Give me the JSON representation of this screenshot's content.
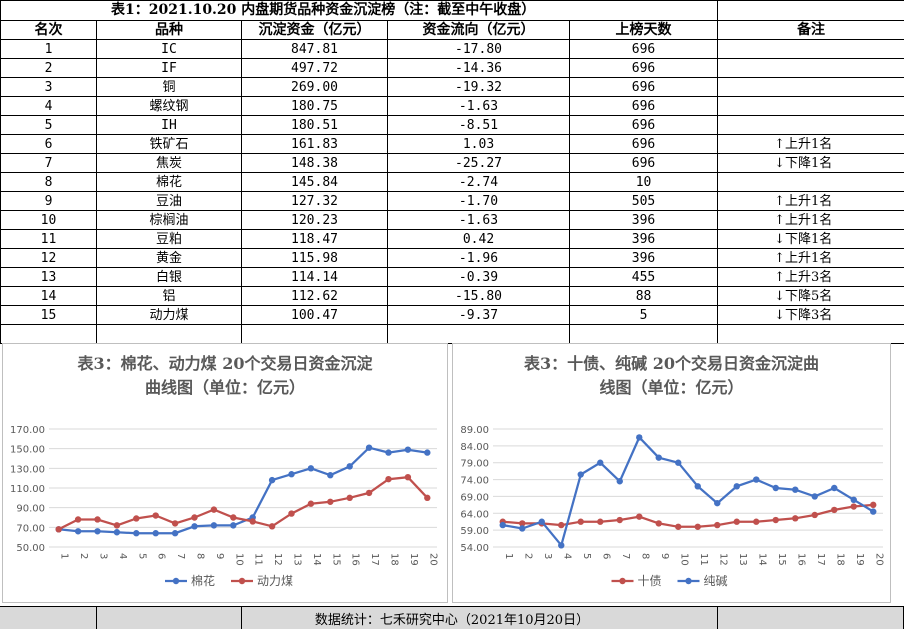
{
  "table": {
    "title": "表1：2021.10.20 内盘期货品种资金沉淀榜（注：截至中午收盘）",
    "headers": [
      "名次",
      "品种",
      "沉淀资金（亿元）",
      "资金流向（亿元）",
      "上榜天数",
      "备注"
    ],
    "rows": [
      {
        "rank": "1",
        "name": "IC",
        "fund": "847.81",
        "flow": "-17.80",
        "days": "696",
        "note": ""
      },
      {
        "rank": "2",
        "name": "IF",
        "fund": "497.72",
        "flow": "-14.36",
        "days": "696",
        "note": ""
      },
      {
        "rank": "3",
        "name": "铜",
        "fund": "269.00",
        "flow": "-19.32",
        "days": "696",
        "note": ""
      },
      {
        "rank": "4",
        "name": "螺纹钢",
        "fund": "180.75",
        "flow": "-1.63",
        "days": "696",
        "note": ""
      },
      {
        "rank": "5",
        "name": "IH",
        "fund": "180.51",
        "flow": "-8.51",
        "days": "696",
        "note": ""
      },
      {
        "rank": "6",
        "name": "铁矿石",
        "fund": "161.83",
        "flow": "1.03",
        "days": "696",
        "note": "上升1名",
        "dir": "up"
      },
      {
        "rank": "7",
        "name": "焦炭",
        "fund": "148.38",
        "flow": "-25.27",
        "days": "696",
        "note": "下降1名",
        "dir": "down"
      },
      {
        "rank": "8",
        "name": "棉花",
        "fund": "145.84",
        "flow": "-2.74",
        "days": "10",
        "note": ""
      },
      {
        "rank": "9",
        "name": "豆油",
        "fund": "127.32",
        "flow": "-1.70",
        "days": "505",
        "note": "上升1名",
        "dir": "up"
      },
      {
        "rank": "10",
        "name": "棕榈油",
        "fund": "120.23",
        "flow": "-1.63",
        "days": "396",
        "note": "上升1名",
        "dir": "up"
      },
      {
        "rank": "11",
        "name": "豆粕",
        "fund": "118.47",
        "flow": "0.42",
        "days": "396",
        "note": "下降1名",
        "dir": "down"
      },
      {
        "rank": "12",
        "name": "黄金",
        "fund": "115.98",
        "flow": "-1.96",
        "days": "396",
        "note": "上升1名",
        "dir": "up"
      },
      {
        "rank": "13",
        "name": "白银",
        "fund": "114.14",
        "flow": "-0.39",
        "days": "455",
        "note": "上升3名",
        "dir": "up"
      },
      {
        "rank": "14",
        "name": "铝",
        "fund": "112.62",
        "flow": "-15.80",
        "days": "88",
        "note": "下降5名",
        "dir": "down"
      },
      {
        "rank": "15",
        "name": "动力煤",
        "fund": "100.47",
        "flow": "-9.37",
        "days": "5",
        "note": "下降3名",
        "dir": "down"
      }
    ]
  },
  "chart_data": [
    {
      "type": "line",
      "title": "表3：棉花、动力煤 20个交易日资金沉淀曲线图（单位：亿元）",
      "title_lines": [
        "表3：棉花、动力煤 20个交易日资金沉淀",
        "曲线图（单位：亿元）"
      ],
      "x": [
        "1",
        "2",
        "3",
        "4",
        "5",
        "6",
        "7",
        "8",
        "9",
        "10",
        "11",
        "12",
        "13",
        "14",
        "15",
        "16",
        "17",
        "18",
        "19",
        "20"
      ],
      "ylim": [
        50,
        170
      ],
      "yticks": [
        "50.00",
        "70.00",
        "90.00",
        "110.00",
        "130.00",
        "150.00",
        "170.00"
      ],
      "grid": true,
      "legend": "bottom",
      "series": [
        {
          "name": "棉花",
          "color": "#4472c4",
          "values": [
            68,
            66,
            66,
            65,
            64,
            64,
            64,
            71,
            72,
            72,
            80,
            118,
            124,
            130,
            123,
            132,
            151,
            146,
            149,
            146
          ]
        },
        {
          "name": "动力煤",
          "color": "#c0504d",
          "values": [
            68,
            78,
            78,
            72,
            79,
            82,
            74,
            80,
            88,
            80,
            76,
            71,
            84,
            94,
            96,
            100,
            105,
            119,
            121,
            100
          ]
        }
      ]
    },
    {
      "type": "line",
      "title": "表3：十债、纯碱 20个交易日资金沉淀曲线图（单位：亿元）",
      "title_lines": [
        "表3：十债、纯碱 20个交易日资金沉淀曲",
        "线图（单位：亿元）"
      ],
      "x": [
        "1",
        "2",
        "3",
        "4",
        "5",
        "6",
        "7",
        "8",
        "9",
        "10",
        "11",
        "12",
        "13",
        "14",
        "15",
        "16",
        "17",
        "18",
        "19",
        "20"
      ],
      "ylim": [
        54,
        89
      ],
      "yticks": [
        "54.00",
        "59.00",
        "64.00",
        "69.00",
        "74.00",
        "79.00",
        "84.00",
        "89.00"
      ],
      "grid": true,
      "legend": "bottom",
      "series": [
        {
          "name": "十债",
          "color": "#c0504d",
          "values": [
            61.5,
            61,
            61,
            60.5,
            61.5,
            61.5,
            62,
            63,
            61,
            60,
            60,
            60.5,
            61.5,
            61.5,
            62,
            62.5,
            63.5,
            65,
            66,
            66.5
          ]
        },
        {
          "name": "纯碱",
          "color": "#4472c4",
          "values": [
            60.5,
            59.5,
            61.5,
            54.5,
            75.5,
            79,
            73.5,
            86.5,
            80.5,
            79,
            72,
            67,
            72,
            74,
            71.5,
            71,
            69,
            71.5,
            68,
            64.5
          ]
        }
      ]
    }
  ],
  "footer": {
    "text": "数据统计：七禾研究中心（2021年10月20日）"
  }
}
